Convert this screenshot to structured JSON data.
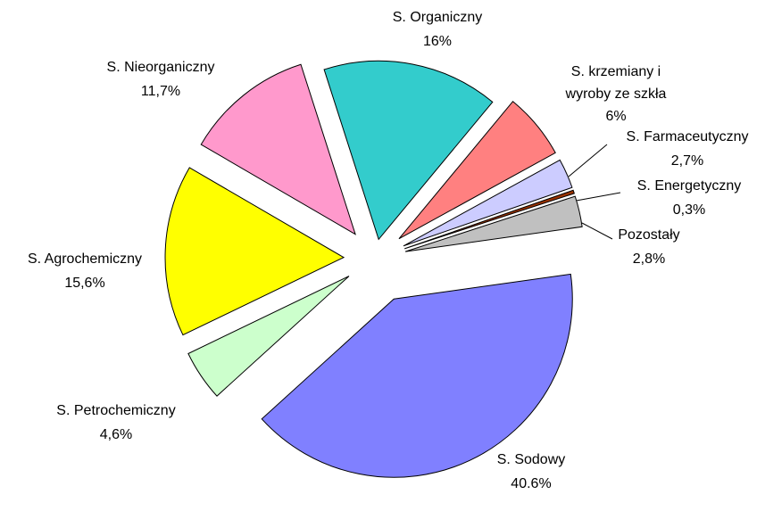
{
  "chart_data": {
    "type": "pie",
    "categories": [
      "S. Sodowy",
      "S. Petrochemiczny",
      "S. Agrochemiczny",
      "S. Nieorganiczny",
      "S. Organiczny",
      "S. krzemiany i wyroby ze szkła",
      "S. Farmaceutyczny",
      "S. Energetyczny",
      "Pozostały"
    ],
    "values": [
      40.6,
      4.6,
      15.6,
      11.7,
      16,
      6,
      2.7,
      0.3,
      2.8
    ],
    "value_labels": [
      "40.6%",
      "4,6%",
      "15,6%",
      "11,7%",
      "16%",
      "6%",
      "2,7%",
      "0,3%",
      "2,8%"
    ],
    "colors": [
      "#8080ff",
      "#ccffcc",
      "#ffff00",
      "#ff99cc",
      "#33cccc",
      "#ff8080",
      "#ccccff",
      "#993300",
      "#c0c0c0"
    ]
  }
}
